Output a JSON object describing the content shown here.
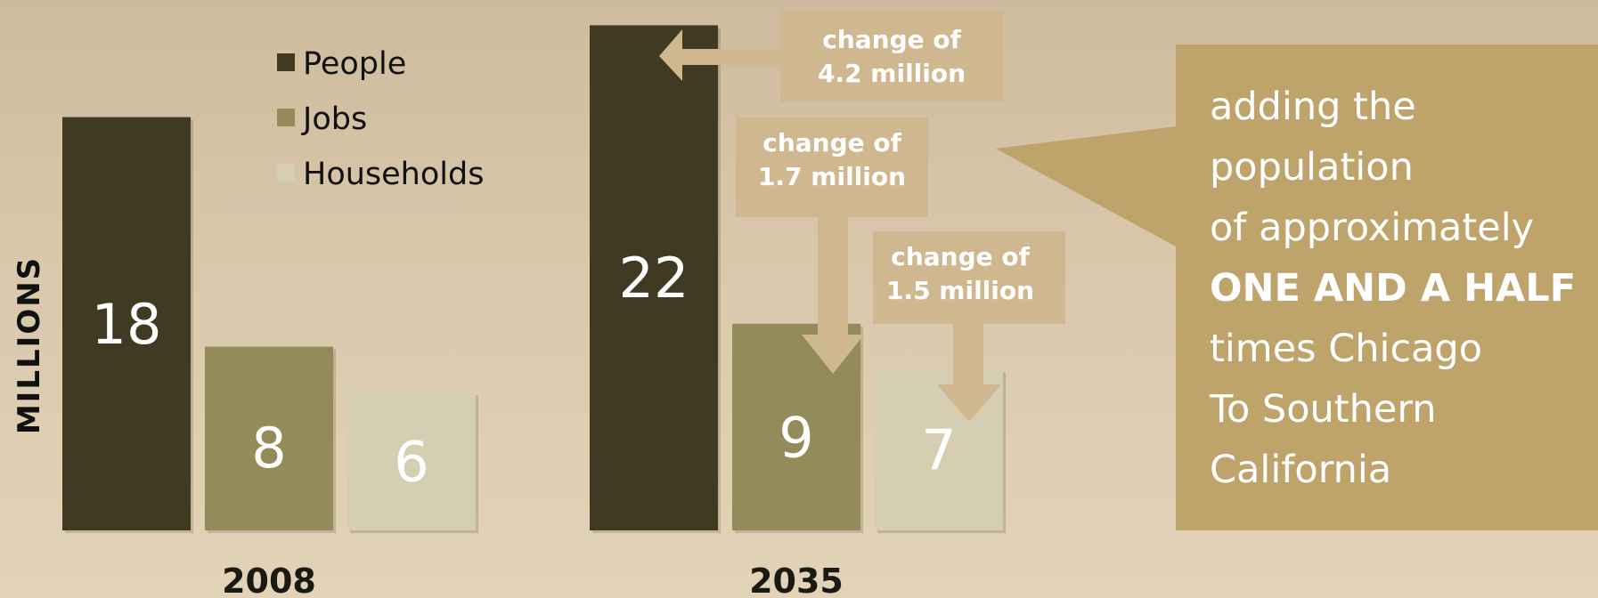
{
  "chart_data": {
    "type": "bar",
    "title": "",
    "ylabel": "MILLIONS",
    "xlabel": "",
    "categories": [
      "2008",
      "2035"
    ],
    "series": [
      {
        "name": "People",
        "values": [
          18,
          22
        ],
        "color": "#403a23"
      },
      {
        "name": "Jobs",
        "values": [
          8,
          9
        ],
        "color": "#938b59"
      },
      {
        "name": "Households",
        "values": [
          6,
          7
        ],
        "color": "#d6ceb2"
      }
    ],
    "ylim": [
      0,
      22
    ],
    "grid": false,
    "legend": "top-left",
    "annotations": [
      {
        "series": "People",
        "lines": [
          "change of",
          "4.2 million"
        ]
      },
      {
        "series": "Jobs",
        "lines": [
          "change of",
          "1.7 million"
        ]
      },
      {
        "series": "Households",
        "lines": [
          "change of",
          "1.5 million"
        ]
      }
    ]
  },
  "callout": {
    "color": "#bea36a",
    "lines": [
      {
        "text": "adding the",
        "bold": false
      },
      {
        "text": "population",
        "bold": false
      },
      {
        "text": "of approximately",
        "bold": false
      },
      {
        "text": "ONE AND A HALF",
        "bold": true
      },
      {
        "text": "times Chicago",
        "bold": false
      },
      {
        "text": "To Southern",
        "bold": false
      },
      {
        "text": "California",
        "bold": false
      }
    ]
  }
}
